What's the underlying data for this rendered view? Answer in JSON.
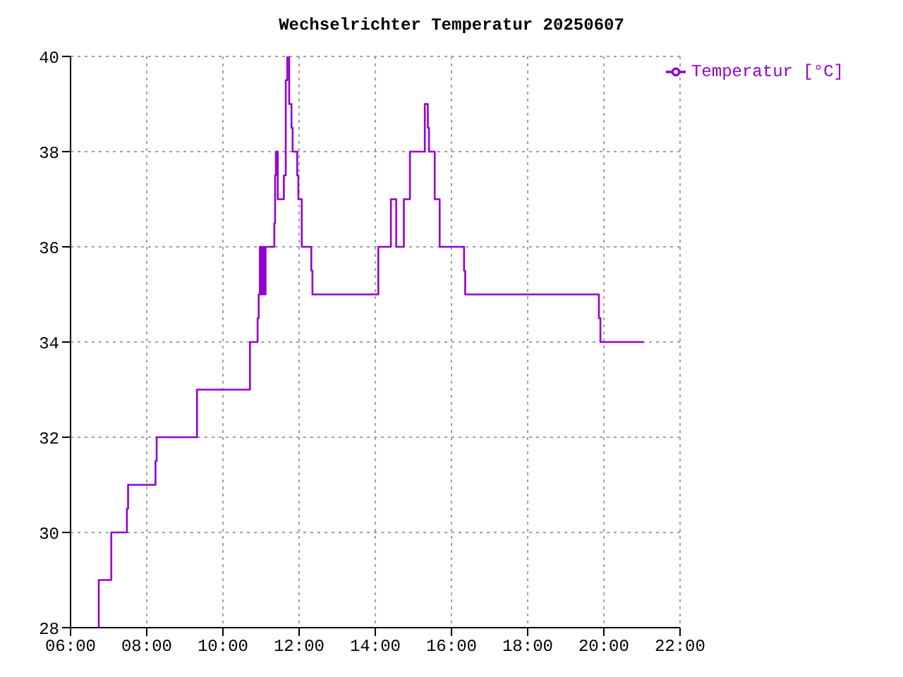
{
  "chart_data": {
    "type": "step",
    "title": "Wechselrichter Temperatur 20250607",
    "x": [
      6.73,
      6.74,
      7.07,
      7.48,
      7.51,
      8.23,
      8.26,
      9.32,
      10.71,
      10.91,
      10.94,
      10.97,
      11.01,
      11.04,
      11.08,
      11.12,
      11.25,
      11.35,
      11.37,
      11.39,
      11.44,
      11.6,
      11.65,
      11.69,
      11.74,
      11.8,
      11.83,
      11.95,
      11.98,
      12.07,
      12.32,
      12.35,
      14.08,
      14.41,
      14.55,
      14.75,
      14.91,
      15.3,
      15.38,
      15.41,
      15.56,
      15.69,
      16.33,
      16.36,
      19.87,
      19.91,
      21.05
    ],
    "series": [
      {
        "name": "Temperatur [°C]",
        "color": "#9400d3",
        "values": [
          28,
          29,
          30,
          30.5,
          31,
          31.5,
          32,
          33,
          34,
          34.5,
          35,
          36,
          35,
          36,
          35,
          36,
          36,
          36.5,
          37.5,
          38,
          37,
          37.5,
          39.5,
          40,
          39,
          38.5,
          38,
          37.5,
          37,
          36,
          35.5,
          35,
          36,
          37,
          36,
          37,
          38,
          39,
          38.5,
          38,
          37,
          36,
          35.5,
          35,
          34.5,
          34,
          34
        ]
      }
    ],
    "xlim": [
      6,
      22
    ],
    "xticks": [
      {
        "value": 6,
        "label": "06:00"
      },
      {
        "value": 8,
        "label": "08:00"
      },
      {
        "value": 10,
        "label": "10:00"
      },
      {
        "value": 12,
        "label": "12:00"
      },
      {
        "value": 14,
        "label": "14:00"
      },
      {
        "value": 16,
        "label": "16:00"
      },
      {
        "value": 18,
        "label": "18:00"
      },
      {
        "value": 20,
        "label": "20:00"
      },
      {
        "value": 22,
        "label": "22:00"
      }
    ],
    "ylim": [
      28,
      40
    ],
    "yticks": [
      28,
      30,
      32,
      34,
      36,
      38,
      40
    ],
    "grid": true,
    "legend": "top right"
  }
}
